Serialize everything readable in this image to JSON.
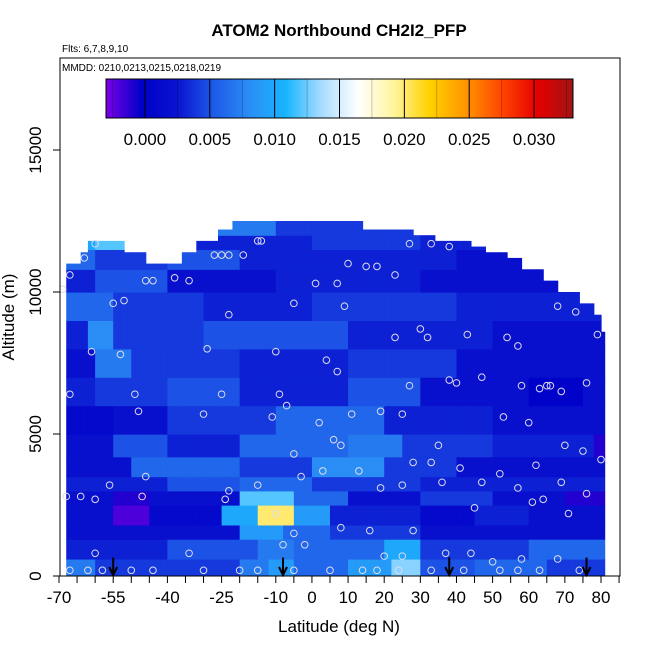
{
  "chart_data": {
    "type": "heatmap",
    "title": "ATOM2 Northbound CH2I2_PFP",
    "subtitle_lines": [
      "Flts: 6,7,8,9,10",
      "MMDD: 0210,0213,0215,0218,0219"
    ],
    "xlabel": "Latitude (deg N)",
    "ylabel": "Altitude (m)",
    "xlim": [
      -70,
      85
    ],
    "ylim": [
      0,
      18000
    ],
    "x_ticks": [
      -70,
      -55,
      -40,
      -25,
      -10,
      0,
      10,
      20,
      30,
      40,
      50,
      60,
      70,
      80
    ],
    "x_tick_labels": [
      "-70",
      "-55",
      "-40",
      "-25",
      "-10",
      "0",
      "10",
      "20",
      "30",
      "40",
      "50",
      "60",
      "70",
      "80"
    ],
    "x_minor_ticks": [
      -65,
      -60,
      -50,
      -45,
      -35,
      -30,
      -20,
      -15,
      -5,
      5,
      15,
      25,
      35,
      45,
      55,
      65,
      75,
      85
    ],
    "y_ticks": [
      0,
      5000,
      10000,
      15000
    ],
    "y_tick_labels": [
      "0",
      "5000",
      "10000",
      "15000"
    ],
    "colorbar": {
      "range": [
        -0.003,
        0.033
      ],
      "ticks": [
        0.0,
        0.005,
        0.01,
        0.015,
        0.02,
        0.025,
        0.03
      ],
      "tick_labels": [
        "0.000",
        "0.005",
        "0.010",
        "0.015",
        "0.020",
        "0.025",
        "0.030"
      ],
      "colors": [
        "#7a00e6",
        "#0000c8",
        "#0a14d0",
        "#1e5ae8",
        "#2a8ef5",
        "#18b4ff",
        "#a8dcff",
        "#ffffff",
        "#fff5a0",
        "#ffd200",
        "#ff9600",
        "#ff4600",
        "#e60000",
        "#a01414"
      ]
    },
    "profile_latitudes": [
      -55,
      -8,
      38,
      76
    ],
    "column_tops": [
      [
        -68,
        10300
      ],
      [
        -66,
        11000
      ],
      [
        -62,
        11400
      ],
      [
        -60,
        11800
      ],
      [
        -55,
        11800
      ],
      [
        -50,
        11400
      ],
      [
        -45,
        11000
      ],
      [
        -40,
        11000
      ],
      [
        -35,
        11400
      ],
      [
        -30,
        11800
      ],
      [
        -25,
        12200
      ],
      [
        -20,
        12500
      ],
      [
        -15,
        12500
      ],
      [
        -10,
        12500
      ],
      [
        -5,
        12500
      ],
      [
        0,
        12500
      ],
      [
        5,
        12500
      ],
      [
        10,
        12500
      ],
      [
        15,
        12200
      ],
      [
        20,
        12200
      ],
      [
        25,
        12200
      ],
      [
        30,
        12000
      ],
      [
        35,
        11800
      ],
      [
        40,
        11800
      ],
      [
        45,
        11600
      ],
      [
        50,
        11400
      ],
      [
        55,
        11200
      ],
      [
        60,
        10800
      ],
      [
        65,
        10400
      ],
      [
        70,
        10000
      ],
      [
        75,
        9600
      ],
      [
        79,
        9200
      ],
      [
        81,
        8600
      ]
    ],
    "value_bands": [
      {
        "y": [
          0,
          600
        ],
        "segments": [
          [
            -68,
            -60,
            0.007
          ],
          [
            -60,
            -20,
            0.004
          ],
          [
            -20,
            -12,
            0.007
          ],
          [
            -12,
            -5,
            0.009
          ],
          [
            -5,
            10,
            0.006
          ],
          [
            10,
            22,
            0.009
          ],
          [
            22,
            30,
            0.013
          ],
          [
            30,
            45,
            0.005
          ],
          [
            45,
            65,
            0.006
          ],
          [
            65,
            81,
            0.004
          ]
        ]
      },
      {
        "y": [
          600,
          1300
        ],
        "segments": [
          [
            -68,
            -40,
            0.003
          ],
          [
            -40,
            -15,
            0.005
          ],
          [
            -15,
            -5,
            0.007
          ],
          [
            -5,
            20,
            0.006
          ],
          [
            20,
            30,
            0.01
          ],
          [
            30,
            60,
            0.004
          ],
          [
            60,
            81,
            0.006
          ]
        ]
      },
      {
        "y": [
          1300,
          1800
        ],
        "segments": [
          [
            -68,
            -20,
            0.002
          ],
          [
            -20,
            -8,
            0.009
          ],
          [
            -8,
            5,
            0.006
          ],
          [
            5,
            30,
            0.004
          ],
          [
            30,
            81,
            0.002
          ]
        ]
      },
      {
        "y": [
          1800,
          2500
        ],
        "segments": [
          [
            -68,
            -55,
            0.002
          ],
          [
            -55,
            -45,
            -0.002
          ],
          [
            -45,
            -25,
            0.001
          ],
          [
            -25,
            -15,
            0.01
          ],
          [
            -15,
            -5,
            0.02
          ],
          [
            -5,
            5,
            0.009
          ],
          [
            5,
            30,
            0.003
          ],
          [
            30,
            45,
            0.001
          ],
          [
            45,
            60,
            0.003
          ],
          [
            60,
            81,
            0.002
          ]
        ]
      },
      {
        "y": [
          2500,
          3000
        ],
        "segments": [
          [
            -68,
            -55,
            0.002
          ],
          [
            -55,
            -45,
            -0.001
          ],
          [
            -45,
            -20,
            0.002
          ],
          [
            -20,
            -5,
            0.012
          ],
          [
            -5,
            10,
            0.006
          ],
          [
            10,
            30,
            0.002
          ],
          [
            30,
            50,
            0.004
          ],
          [
            50,
            70,
            0.002
          ],
          [
            70,
            81,
            -0.001
          ]
        ]
      },
      {
        "y": [
          3000,
          3500
        ],
        "segments": [
          [
            -68,
            -40,
            0.003
          ],
          [
            -40,
            -20,
            0.005
          ],
          [
            -20,
            0,
            0.006
          ],
          [
            0,
            30,
            0.004
          ],
          [
            30,
            81,
            0.003
          ]
        ]
      },
      {
        "y": [
          3500,
          4200
        ],
        "segments": [
          [
            -68,
            -50,
            0.002
          ],
          [
            -50,
            -20,
            0.006
          ],
          [
            -20,
            0,
            0.004
          ],
          [
            0,
            20,
            0.008
          ],
          [
            20,
            40,
            0.004
          ],
          [
            40,
            81,
            0.002
          ]
        ]
      },
      {
        "y": [
          4200,
          5000
        ],
        "segments": [
          [
            -68,
            -55,
            0.002
          ],
          [
            -55,
            -40,
            0.005
          ],
          [
            -40,
            -20,
            0.003
          ],
          [
            -20,
            10,
            0.006
          ],
          [
            10,
            25,
            0.007
          ],
          [
            25,
            50,
            0.004
          ],
          [
            50,
            78,
            0.003
          ],
          [
            78,
            81,
            -0.001
          ]
        ]
      },
      {
        "y": [
          5000,
          6000
        ],
        "segments": [
          [
            -68,
            -55,
            0.001
          ],
          [
            -55,
            -40,
            0.002
          ],
          [
            -40,
            -10,
            0.004
          ],
          [
            -10,
            20,
            0.006
          ],
          [
            20,
            50,
            0.003
          ],
          [
            50,
            81,
            0.002
          ]
        ]
      },
      {
        "y": [
          6000,
          7000
        ],
        "segments": [
          [
            -68,
            -60,
            0.003
          ],
          [
            -60,
            -40,
            0.004
          ],
          [
            -40,
            -20,
            0.005
          ],
          [
            -20,
            10,
            0.003
          ],
          [
            10,
            30,
            0.005
          ],
          [
            30,
            60,
            0.002
          ],
          [
            60,
            75,
            0.0
          ],
          [
            75,
            81,
            0.002
          ]
        ]
      },
      {
        "y": [
          7000,
          8000
        ],
        "segments": [
          [
            -68,
            -60,
            0.002
          ],
          [
            -60,
            -50,
            0.007
          ],
          [
            -50,
            -20,
            0.004
          ],
          [
            -20,
            10,
            0.003
          ],
          [
            10,
            40,
            0.004
          ],
          [
            40,
            81,
            0.002
          ]
        ]
      },
      {
        "y": [
          8000,
          9000
        ],
        "segments": [
          [
            -68,
            -62,
            0.003
          ],
          [
            -62,
            -55,
            0.008
          ],
          [
            -55,
            -30,
            0.004
          ],
          [
            -30,
            10,
            0.005
          ],
          [
            10,
            50,
            0.003
          ],
          [
            50,
            81,
            0.002
          ]
        ]
      },
      {
        "y": [
          9000,
          10000
        ],
        "segments": [
          [
            -68,
            -55,
            0.006
          ],
          [
            -55,
            -30,
            0.004
          ],
          [
            -30,
            0,
            0.003
          ],
          [
            0,
            40,
            0.004
          ],
          [
            40,
            81,
            0.003
          ]
        ]
      },
      {
        "y": [
          10000,
          10800
        ],
        "segments": [
          [
            -68,
            -60,
            0.003
          ],
          [
            -60,
            -40,
            0.005
          ],
          [
            -40,
            -10,
            0.002
          ],
          [
            -10,
            30,
            0.003
          ],
          [
            30,
            81,
            0.002
          ]
        ]
      },
      {
        "y": [
          10800,
          11500
        ],
        "segments": [
          [
            -68,
            -60,
            0.006
          ],
          [
            -60,
            -40,
            0.004
          ],
          [
            -40,
            -20,
            0.005
          ],
          [
            -20,
            40,
            0.003
          ],
          [
            40,
            81,
            0.002
          ]
        ]
      },
      {
        "y": [
          11500,
          12000
        ],
        "segments": [
          [
            -68,
            -60,
            0.01
          ],
          [
            -60,
            -50,
            0.012
          ],
          [
            -50,
            -40,
            0.005
          ],
          [
            -40,
            0,
            0.003
          ],
          [
            0,
            30,
            0.004
          ],
          [
            30,
            81,
            0.003
          ]
        ]
      },
      {
        "y": [
          12000,
          12600
        ],
        "segments": [
          [
            -68,
            -10,
            0.007
          ],
          [
            -10,
            30,
            0.004
          ],
          [
            30,
            81,
            0.003
          ]
        ]
      }
    ],
    "sample_points": [
      [
        -67,
        200
      ],
      [
        -62,
        200
      ],
      [
        -58,
        200
      ],
      [
        -50,
        200
      ],
      [
        -44,
        200
      ],
      [
        -30,
        200
      ],
      [
        -20,
        200
      ],
      [
        -15,
        200
      ],
      [
        -5,
        200
      ],
      [
        5,
        200
      ],
      [
        14,
        200
      ],
      [
        18,
        200
      ],
      [
        24,
        200
      ],
      [
        33,
        200
      ],
      [
        42,
        200
      ],
      [
        52,
        200
      ],
      [
        57,
        200
      ],
      [
        63,
        200
      ],
      [
        74,
        200
      ],
      [
        -60,
        800
      ],
      [
        -34,
        800
      ],
      [
        -8,
        1100
      ],
      [
        -2,
        1100
      ],
      [
        20,
        700
      ],
      [
        25,
        700
      ],
      [
        37,
        800
      ],
      [
        44,
        800
      ],
      [
        50,
        500
      ],
      [
        58,
        600
      ],
      [
        68,
        600
      ],
      [
        -68,
        2800
      ],
      [
        -64,
        2800
      ],
      [
        -60,
        2700
      ],
      [
        -47,
        2800
      ],
      [
        -24,
        2700
      ],
      [
        -10,
        2200
      ],
      [
        -5,
        1500
      ],
      [
        8,
        1700
      ],
      [
        16,
        1600
      ],
      [
        28,
        1600
      ],
      [
        45,
        2400
      ],
      [
        61,
        2600
      ],
      [
        64,
        2700
      ],
      [
        71,
        2200
      ],
      [
        -56,
        3200
      ],
      [
        -46,
        3500
      ],
      [
        -23,
        3000
      ],
      [
        -15,
        3200
      ],
      [
        -3,
        3500
      ],
      [
        3,
        3700
      ],
      [
        13,
        3700
      ],
      [
        19,
        3100
      ],
      [
        25,
        3200
      ],
      [
        36,
        3300
      ],
      [
        41,
        3800
      ],
      [
        47,
        3300
      ],
      [
        52,
        3600
      ],
      [
        57,
        3100
      ],
      [
        69,
        3300
      ],
      [
        76,
        2900
      ],
      [
        -5,
        4300
      ],
      [
        6,
        4800
      ],
      [
        8,
        4600
      ],
      [
        28,
        4000
      ],
      [
        33,
        4000
      ],
      [
        35,
        4600
      ],
      [
        62,
        3900
      ],
      [
        70,
        4600
      ],
      [
        75,
        4400
      ],
      [
        80,
        4100
      ],
      [
        -48,
        5800
      ],
      [
        -30,
        5700
      ],
      [
        -11,
        5600
      ],
      [
        -7,
        6000
      ],
      [
        2,
        5400
      ],
      [
        11,
        5700
      ],
      [
        19,
        5800
      ],
      [
        25,
        5700
      ],
      [
        38,
        6900
      ],
      [
        40,
        6800
      ],
      [
        53,
        5600
      ],
      [
        60,
        5400
      ],
      [
        63,
        6600
      ],
      [
        65,
        6700
      ],
      [
        66,
        6700
      ],
      [
        69,
        6500
      ],
      [
        76,
        6800
      ],
      [
        -67,
        6400
      ],
      [
        -49,
        6400
      ],
      [
        -25,
        6400
      ],
      [
        -9,
        6400
      ],
      [
        7,
        7200
      ],
      [
        27,
        6700
      ],
      [
        47,
        7000
      ],
      [
        58,
        6700
      ],
      [
        -61,
        7900
      ],
      [
        -53,
        7800
      ],
      [
        -29,
        8000
      ],
      [
        -10,
        7900
      ],
      [
        4,
        7600
      ],
      [
        23,
        8400
      ],
      [
        30,
        8700
      ],
      [
        32,
        8400
      ],
      [
        43,
        8500
      ],
      [
        54,
        8400
      ],
      [
        57,
        8100
      ],
      [
        79,
        8500
      ],
      [
        -55,
        9600
      ],
      [
        -52,
        9700
      ],
      [
        -23,
        9200
      ],
      [
        -5,
        9600
      ],
      [
        9,
        9500
      ],
      [
        68,
        9500
      ],
      [
        73,
        9300
      ],
      [
        -69,
        10100
      ],
      [
        -67,
        10600
      ],
      [
        -46,
        10400
      ],
      [
        -44,
        10400
      ],
      [
        -38,
        10500
      ],
      [
        -34,
        10400
      ],
      [
        1,
        10300
      ],
      [
        7,
        10300
      ],
      [
        10,
        11000
      ],
      [
        15,
        10900
      ],
      [
        18,
        10900
      ],
      [
        23,
        10600
      ],
      [
        -63,
        11200
      ],
      [
        -60,
        11700
      ],
      [
        -27,
        11300
      ],
      [
        -25,
        11300
      ],
      [
        -23,
        11300
      ],
      [
        -19,
        11300
      ],
      [
        -15,
        11800
      ],
      [
        -14,
        11800
      ],
      [
        27,
        11700
      ],
      [
        33,
        11700
      ],
      [
        38,
        11600
      ]
    ]
  }
}
